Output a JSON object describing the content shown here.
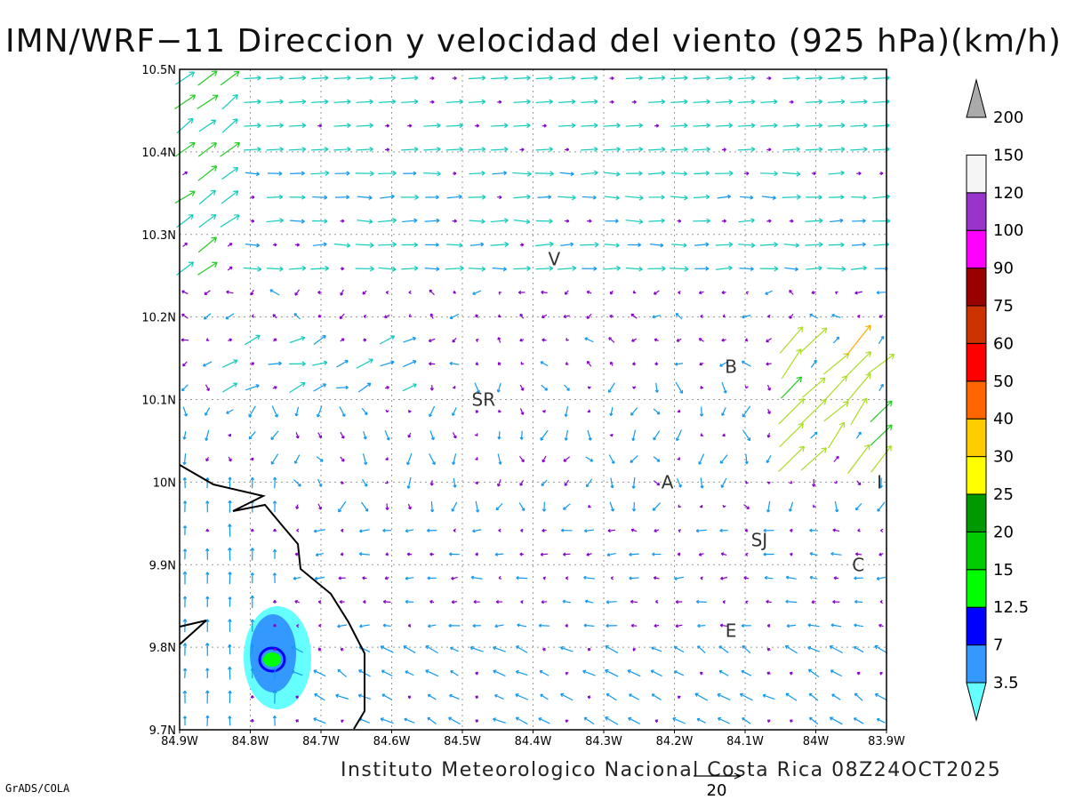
{
  "title": "IMN/WRF−11 Direccion y velocidad del viento (925 hPa)(km/h)",
  "footer": "Instituto Meteorologico Nacional Costa Rica 08Z24OCT2025",
  "credit": "GrADS/COLA",
  "reference_vector_label": "20",
  "axes": {
    "x_ticks": [
      "84.9W",
      "84.8W",
      "84.7W",
      "84.6W",
      "84.5W",
      "84.4W",
      "84.3W",
      "84.2W",
      "84.1W",
      "84W",
      "83.9W"
    ],
    "y_ticks": [
      "10.5N",
      "10.4N",
      "10.3N",
      "10.2N",
      "10.1N",
      "10N",
      "9.9N",
      "9.8N",
      "9.7N"
    ]
  },
  "cities": [
    {
      "label": "V",
      "lon": -84.37,
      "lat": 10.27
    },
    {
      "label": "SR",
      "lon": -84.47,
      "lat": 10.1
    },
    {
      "label": "B",
      "lon": -84.12,
      "lat": 10.14
    },
    {
      "label": "A",
      "lon": -84.21,
      "lat": 10.0
    },
    {
      "label": "I",
      "lon": -83.91,
      "lat": 10.0
    },
    {
      "label": "SJ",
      "lon": -84.08,
      "lat": 9.93
    },
    {
      "label": "C",
      "lon": -83.94,
      "lat": 9.9
    },
    {
      "label": "E",
      "lon": -84.12,
      "lat": 9.82
    }
  ],
  "colorbar": {
    "levels": [
      "3.5",
      "7",
      "12.5",
      "15",
      "20",
      "25",
      "30",
      "40",
      "50",
      "60",
      "75",
      "90",
      "100",
      "120",
      "150",
      "200"
    ],
    "colors": [
      "#66ffff",
      "#3399ff",
      "#0000ff",
      "#00ff00",
      "#00cc00",
      "#009900",
      "#ffff00",
      "#ffcc00",
      "#ff6600",
      "#ff0000",
      "#cc3300",
      "#990000",
      "#ff00ff",
      "#9933cc",
      "#f5f5f5",
      "#aaaaaa"
    ]
  },
  "legend_colors": {
    "calm": "#8800cc",
    "low": "#1199ee",
    "mid": "#11ccbb",
    "strong": "#22cc22",
    "high": "#aadd22",
    "top": "#ffaa00"
  }
}
